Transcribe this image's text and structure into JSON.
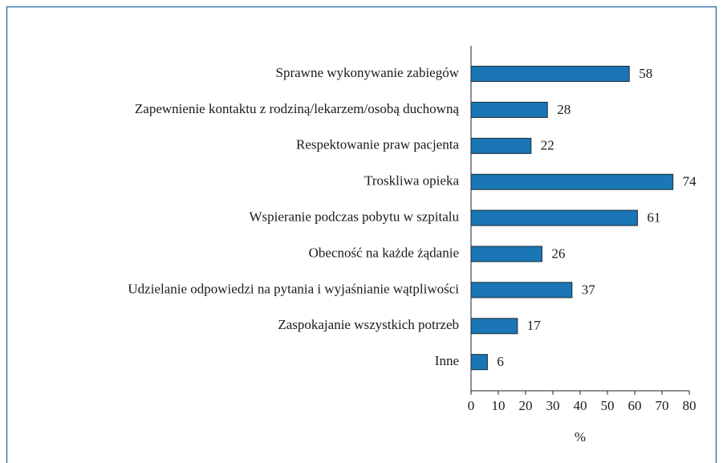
{
  "chart_data": {
    "type": "bar",
    "orientation": "horizontal",
    "categories": [
      "Sprawne wykonywanie zabiegów",
      "Zapewnienie kontaktu z rodziną/lekarzem/osobą duchowną",
      "Respektowanie praw pacjenta",
      "Troskliwa opieka",
      "Wspieranie podczas pobytu w szpitalu",
      "Obecność na każde żądanie",
      "Udzielanie odpowiedzi na pytania i wyjaśnianie wątpliwości",
      "Zaspokajanie wszystkich potrzeb",
      "Inne"
    ],
    "values": [
      58,
      28,
      22,
      74,
      61,
      26,
      37,
      17,
      6
    ],
    "color": "#1a76b4",
    "xlabel": "%",
    "xlim": [
      0,
      80
    ],
    "xticks": [
      0,
      10,
      20,
      30,
      40,
      50,
      60,
      70,
      80
    ]
  }
}
